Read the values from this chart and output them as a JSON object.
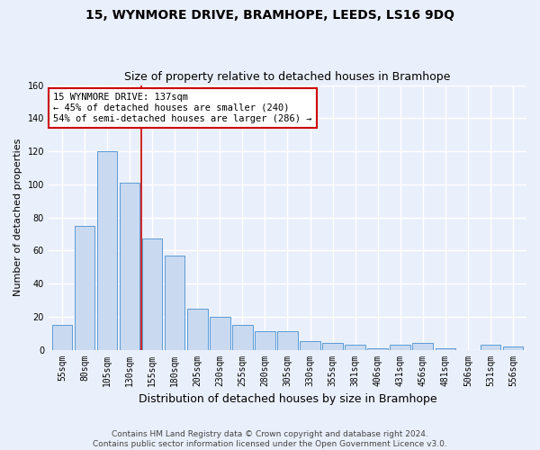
{
  "title": "15, WYNMORE DRIVE, BRAMHOPE, LEEDS, LS16 9DQ",
  "subtitle": "Size of property relative to detached houses in Bramhope",
  "xlabel": "Distribution of detached houses by size in Bramhope",
  "ylabel": "Number of detached properties",
  "categories": [
    "55sqm",
    "80sqm",
    "105sqm",
    "130sqm",
    "155sqm",
    "180sqm",
    "205sqm",
    "230sqm",
    "255sqm",
    "280sqm",
    "305sqm",
    "330sqm",
    "355sqm",
    "381sqm",
    "406sqm",
    "431sqm",
    "456sqm",
    "481sqm",
    "506sqm",
    "531sqm",
    "556sqm"
  ],
  "values": [
    15,
    75,
    120,
    101,
    67,
    57,
    25,
    20,
    15,
    11,
    11,
    5,
    4,
    3,
    1,
    3,
    4,
    1,
    0,
    3,
    2
  ],
  "bar_color": "#c9d9f0",
  "bar_edge_color": "#5b9bd5",
  "background_color": "#eaf0fb",
  "grid_color": "#ffffff",
  "vline_color": "#cc0000",
  "vline_x": 3.5,
  "annotation_text": "15 WYNMORE DRIVE: 137sqm\n← 45% of detached houses are smaller (240)\n54% of semi-detached houses are larger (286) →",
  "annotation_box_color": "#ffffff",
  "annotation_box_edge_color": "#cc0000",
  "ylim": [
    0,
    160
  ],
  "yticks": [
    0,
    20,
    40,
    60,
    80,
    100,
    120,
    140,
    160
  ],
  "footer_line1": "Contains HM Land Registry data © Crown copyright and database right 2024.",
  "footer_line2": "Contains public sector information licensed under the Open Government Licence v3.0.",
  "title_fontsize": 10,
  "subtitle_fontsize": 9,
  "xlabel_fontsize": 9,
  "ylabel_fontsize": 8,
  "tick_fontsize": 7,
  "annotation_fontsize": 7.5,
  "footer_fontsize": 6.5
}
